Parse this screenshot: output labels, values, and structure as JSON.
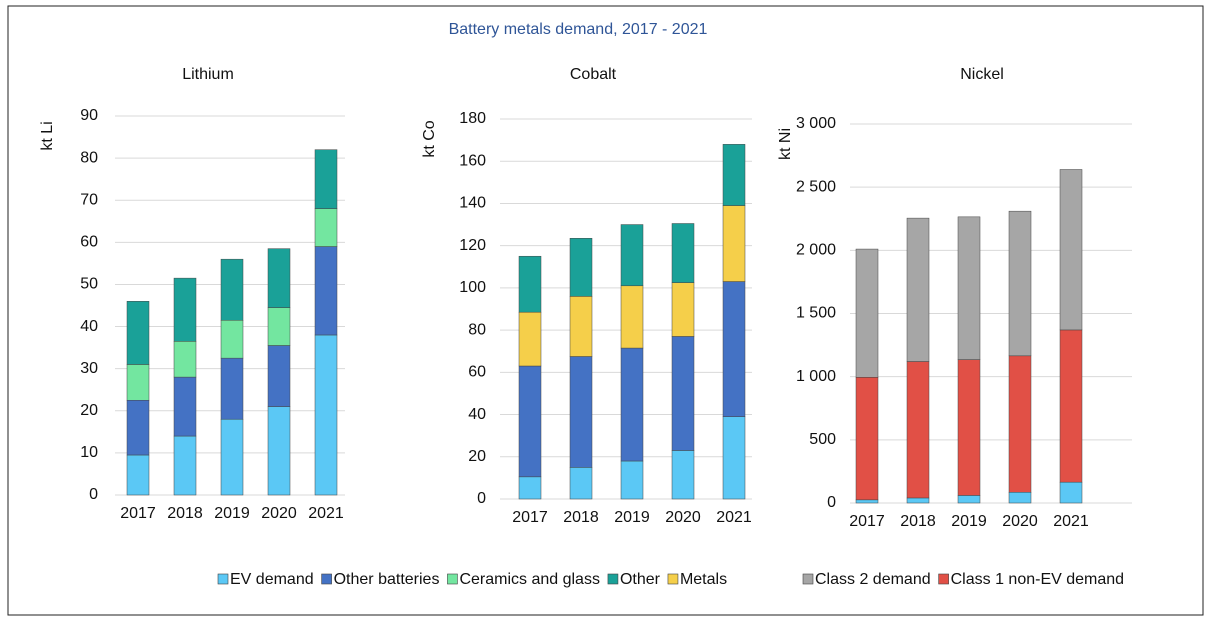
{
  "title": "Battery metals demand, 2017 - 2021",
  "chart_data": [
    {
      "type": "bar",
      "stacked": true,
      "title": "Lithium",
      "ylabel": "kt Li",
      "categories": [
        "2017",
        "2018",
        "2019",
        "2020",
        "2021"
      ],
      "series": [
        {
          "name": "EV demand",
          "color": "#5bc8f5",
          "values": [
            9.5,
            14,
            18,
            21,
            38
          ]
        },
        {
          "name": "Other batteries",
          "color": "#4472c4",
          "values": [
            13,
            14,
            14.5,
            14.5,
            21
          ]
        },
        {
          "name": "Ceramics and glass",
          "color": "#73e6a0",
          "values": [
            8.5,
            8.5,
            9,
            9,
            9
          ]
        },
        {
          "name": "Other",
          "color": "#1aa198",
          "values": [
            15,
            15,
            14.5,
            14,
            14
          ]
        }
      ],
      "ylim": [
        0,
        90
      ],
      "yticks": [
        0,
        10,
        20,
        30,
        40,
        50,
        60,
        70,
        80,
        90
      ],
      "grid": true
    },
    {
      "type": "bar",
      "stacked": true,
      "title": "Cobalt",
      "ylabel": "kt Co",
      "categories": [
        "2017",
        "2018",
        "2019",
        "2020",
        "2021"
      ],
      "series": [
        {
          "color": "#5bc8f5",
          "values": [
            10.5,
            15,
            18,
            23,
            39
          ]
        },
        {
          "color": "#4472c4",
          "values": [
            52.5,
            52.5,
            53.5,
            54,
            64
          ]
        },
        {
          "name": "Metals",
          "color": "#f5cf4a",
          "values": [
            25.5,
            28.5,
            29.5,
            25.5,
            36
          ]
        },
        {
          "color": "#1aa198",
          "values": [
            26.5,
            27.5,
            29,
            28,
            29
          ]
        }
      ],
      "ylim": [
        0,
        180
      ],
      "yticks": [
        0,
        20,
        40,
        60,
        80,
        100,
        120,
        140,
        160,
        180
      ],
      "grid": true
    },
    {
      "type": "bar",
      "stacked": true,
      "title": "Nickel",
      "ylabel": "kt Ni",
      "categories": [
        "2017",
        "2018",
        "2019",
        "2020",
        "2021"
      ],
      "series": [
        {
          "color": "#5bc8f5",
          "values": [
            25,
            40,
            60,
            85,
            165
          ]
        },
        {
          "name": "Class 1 non-EV demand",
          "color": "#e15046",
          "values": [
            970,
            1080,
            1075,
            1080,
            1205
          ]
        },
        {
          "name": "Class 2 demand",
          "color": "#a6a6a6",
          "values": [
            1015,
            1135,
            1130,
            1145,
            1270
          ]
        }
      ],
      "ylim": [
        0,
        3000
      ],
      "yticks": [
        0,
        500,
        {
          "value": 1000,
          "label": "1 000"
        },
        {
          "value": 1500,
          "label": "1 500"
        },
        {
          "value": 2000,
          "label": "2 000"
        },
        {
          "value": 2500,
          "label": "2 500"
        },
        {
          "value": 3000,
          "label": "3 000"
        }
      ],
      "grid": true
    }
  ]
}
